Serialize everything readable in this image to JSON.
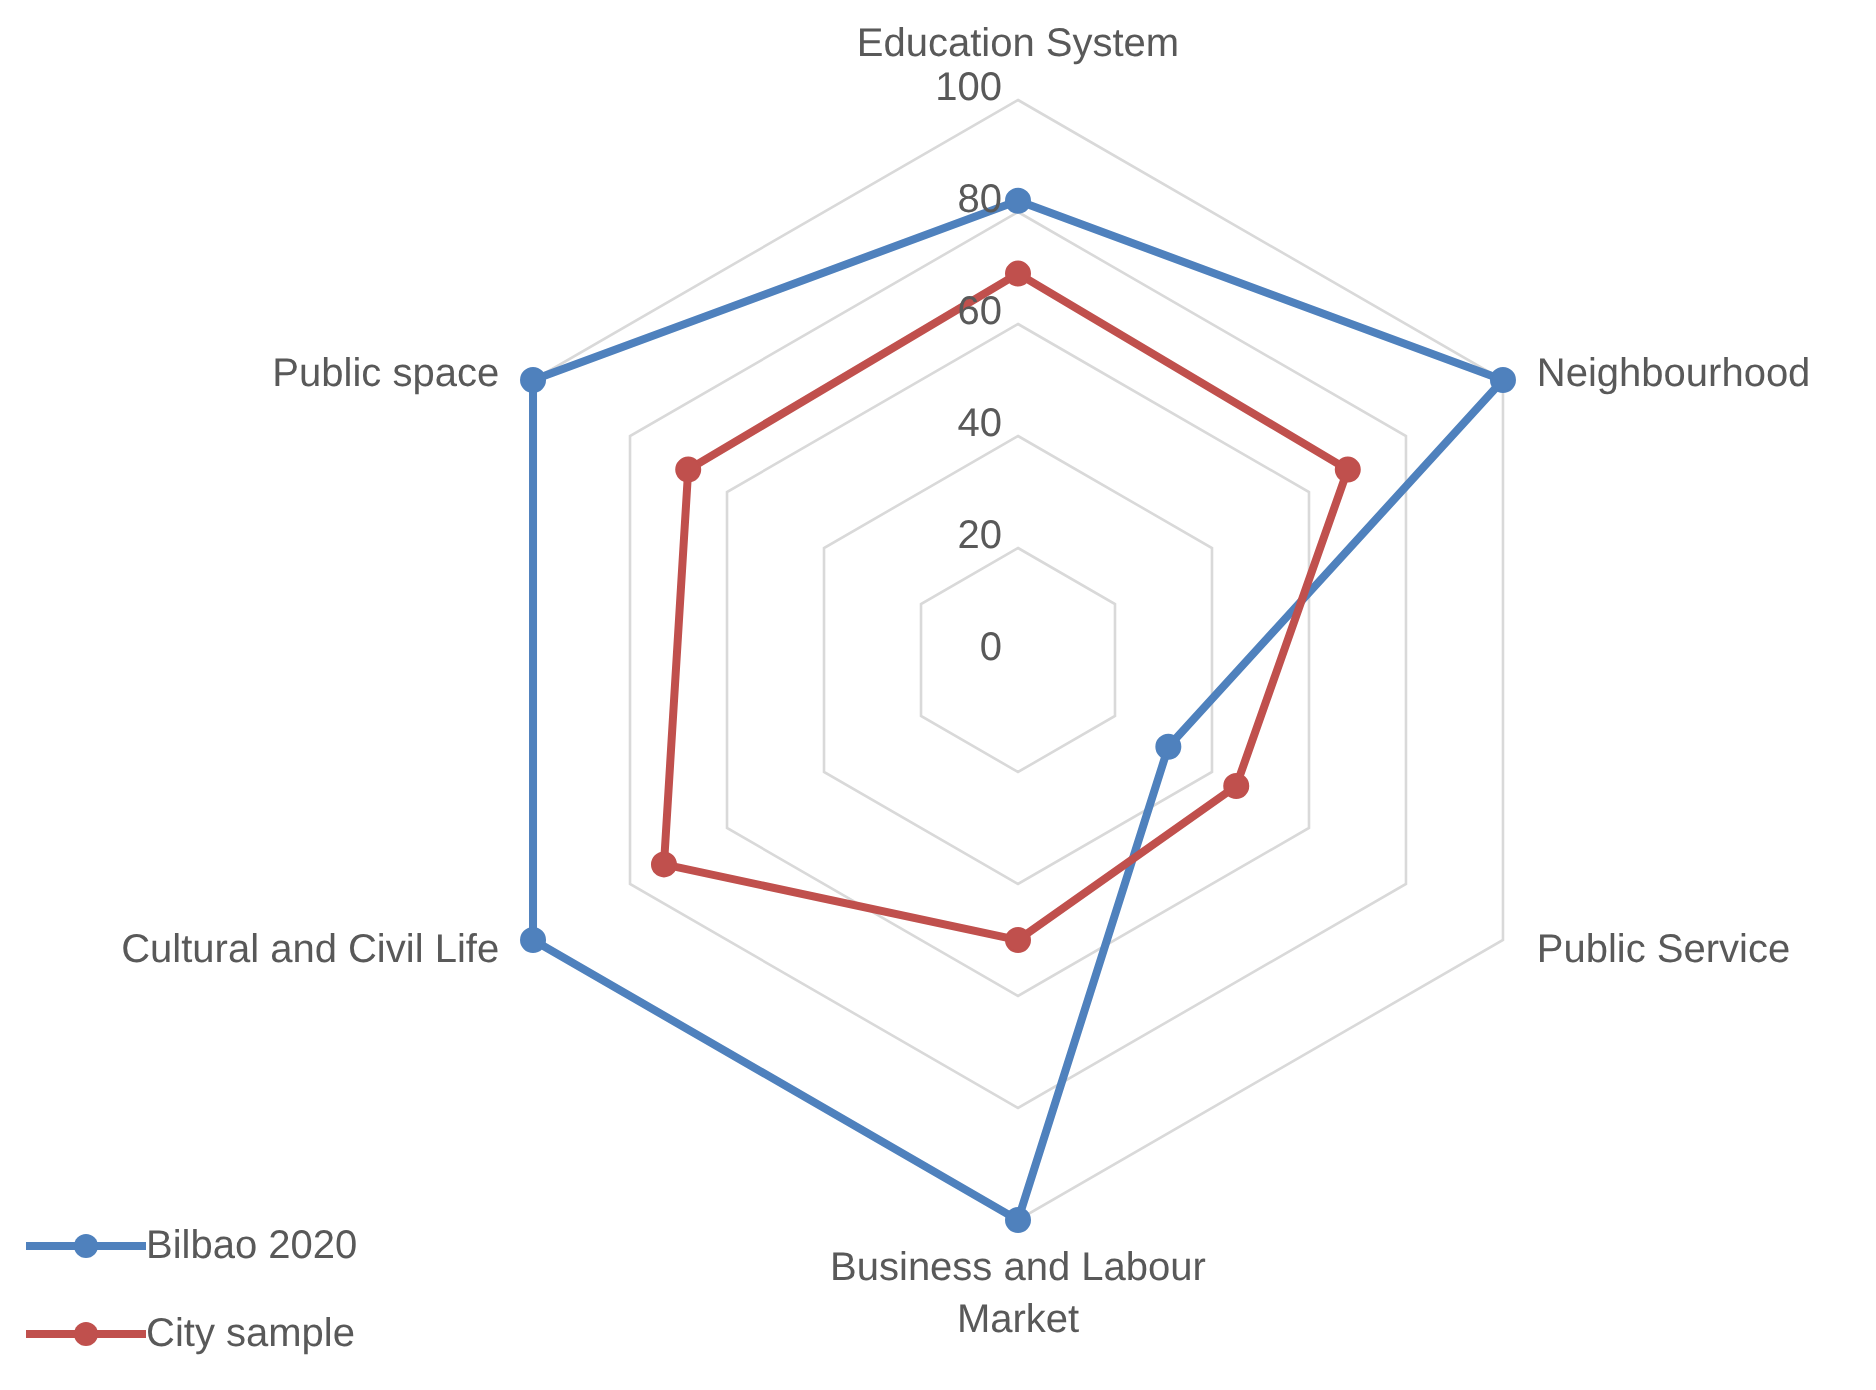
{
  "chart_data": {
    "type": "radar",
    "categories": [
      "Education System",
      "Neighbourhood",
      "Public Service",
      "Business and Labour Market",
      "Cultural and Civil Life",
      "Public space"
    ],
    "series": [
      {
        "name": "Bilbao 2020",
        "color": "#4f81bd",
        "values": [
          82,
          100,
          31,
          100,
          100,
          100
        ]
      },
      {
        "name": "City sample",
        "color": "#c0504d",
        "values": [
          69,
          68,
          45,
          50,
          73,
          68
        ]
      }
    ],
    "ylim": [
      0,
      100
    ],
    "yticks": [
      0,
      20,
      40,
      60,
      80,
      100
    ],
    "grid": true,
    "legend": "bottom left",
    "marker": "circle",
    "line_style": "solid"
  }
}
